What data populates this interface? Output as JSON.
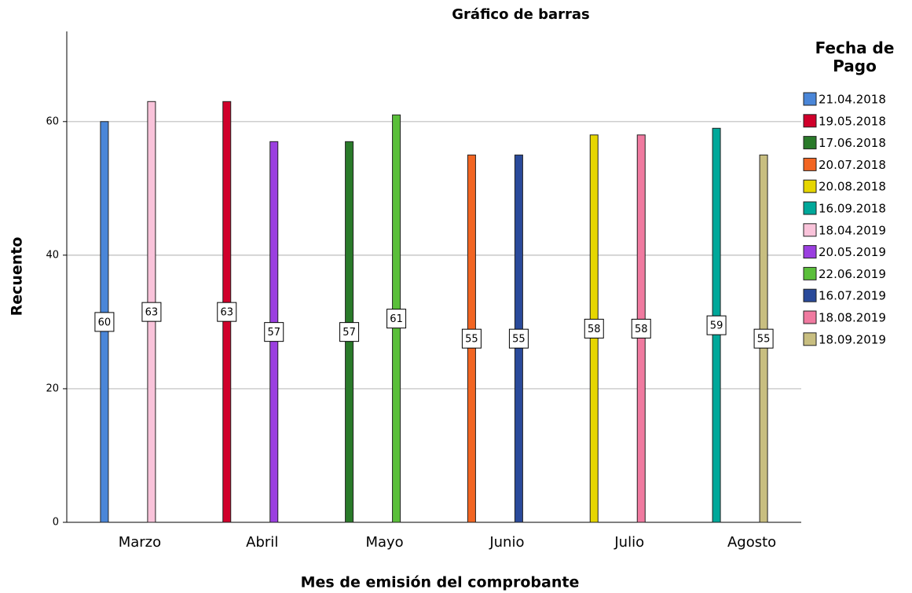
{
  "chart_data": {
    "type": "bar",
    "title": "Gráfico de barras",
    "x_label": "Mes de emisión del comprobante",
    "y_label": "Recuento",
    "legend_title": "Fecha de Pago",
    "legend_position": "right",
    "grid": true,
    "categories": [
      "Marzo",
      "Abril",
      "Mayo",
      "Junio",
      "Julio",
      "Agosto"
    ],
    "ylim": [
      0,
      73.5
    ],
    "yticks": [
      0,
      20,
      40,
      60
    ],
    "series": [
      {
        "name": "21.04.2018",
        "color": "#4a86d8",
        "values": [
          60,
          null,
          null,
          null,
          null,
          null
        ]
      },
      {
        "name": "19.05.2018",
        "color": "#d0002b",
        "values": [
          null,
          63,
          null,
          null,
          null,
          null
        ]
      },
      {
        "name": "17.06.2018",
        "color": "#2a7a2a",
        "values": [
          null,
          null,
          57,
          null,
          null,
          null
        ]
      },
      {
        "name": "20.07.2018",
        "color": "#f26522",
        "values": [
          null,
          null,
          null,
          55,
          null,
          null
        ]
      },
      {
        "name": "20.08.2018",
        "color": "#e6d600",
        "values": [
          null,
          null,
          null,
          null,
          58,
          null
        ]
      },
      {
        "name": "16.09.2018",
        "color": "#00a89a",
        "values": [
          null,
          null,
          null,
          null,
          null,
          59
        ]
      },
      {
        "name": "18.04.2019",
        "color": "#f9c3da",
        "values": [
          63,
          null,
          null,
          null,
          null,
          null
        ]
      },
      {
        "name": "20.05.2019",
        "color": "#9b3fe0",
        "values": [
          null,
          57,
          null,
          null,
          null,
          null
        ]
      },
      {
        "name": "22.06.2019",
        "color": "#5abf3a",
        "values": [
          null,
          null,
          61,
          null,
          null,
          null
        ]
      },
      {
        "name": "16.07.2019",
        "color": "#2a4a9a",
        "values": [
          null,
          null,
          null,
          55,
          null,
          null
        ]
      },
      {
        "name": "18.08.2019",
        "color": "#f07aa0",
        "values": [
          null,
          null,
          null,
          null,
          58,
          null
        ]
      },
      {
        "name": "18.09.2019",
        "color": "#c8be80",
        "values": [
          null,
          null,
          null,
          null,
          null,
          55
        ]
      }
    ]
  }
}
